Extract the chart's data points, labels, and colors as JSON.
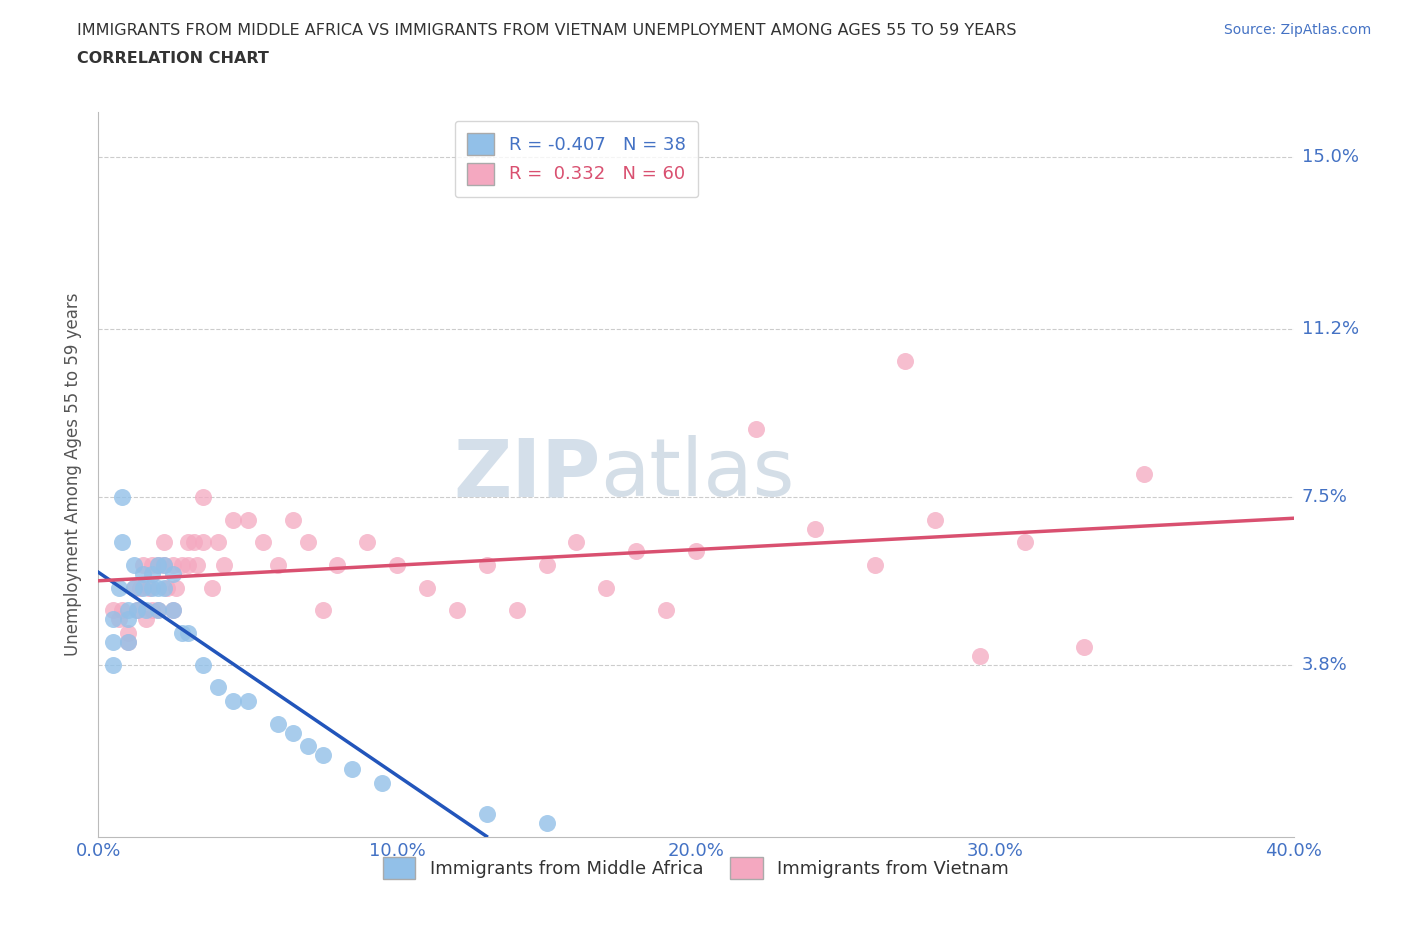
{
  "title_line1": "IMMIGRANTS FROM MIDDLE AFRICA VS IMMIGRANTS FROM VIETNAM UNEMPLOYMENT AMONG AGES 55 TO 59 YEARS",
  "title_line2": "CORRELATION CHART",
  "source_text": "Source: ZipAtlas.com",
  "ylabel": "Unemployment Among Ages 55 to 59 years",
  "xlim": [
    0.0,
    0.4
  ],
  "ylim": [
    0.0,
    0.16
  ],
  "yticks": [
    0.038,
    0.075,
    0.112,
    0.15
  ],
  "ytick_labels": [
    "3.8%",
    "7.5%",
    "11.2%",
    "15.0%"
  ],
  "xticks": [
    0.0,
    0.1,
    0.2,
    0.3,
    0.4
  ],
  "xtick_labels": [
    "0.0%",
    "10.0%",
    "20.0%",
    "30.0%",
    "40.0%"
  ],
  "color_blue": "#92C0E8",
  "color_pink": "#F4A8C0",
  "line_color_blue": "#2255BB",
  "line_color_pink": "#D95070",
  "R_blue": -0.407,
  "N_blue": 38,
  "R_pink": 0.332,
  "N_pink": 60,
  "watermark_zip": "ZIP",
  "watermark_atlas": "atlas",
  "legend_label_blue": "Immigrants from Middle Africa",
  "legend_label_pink": "Immigrants from Vietnam",
  "blue_x": [
    0.005,
    0.005,
    0.005,
    0.007,
    0.008,
    0.008,
    0.01,
    0.01,
    0.01,
    0.012,
    0.012,
    0.013,
    0.015,
    0.015,
    0.016,
    0.018,
    0.018,
    0.02,
    0.02,
    0.02,
    0.022,
    0.022,
    0.025,
    0.025,
    0.028,
    0.03,
    0.035,
    0.04,
    0.045,
    0.05,
    0.06,
    0.065,
    0.07,
    0.075,
    0.085,
    0.095,
    0.13,
    0.15
  ],
  "blue_y": [
    0.048,
    0.043,
    0.038,
    0.055,
    0.075,
    0.065,
    0.05,
    0.048,
    0.043,
    0.06,
    0.055,
    0.05,
    0.058,
    0.055,
    0.05,
    0.058,
    0.055,
    0.06,
    0.055,
    0.05,
    0.06,
    0.055,
    0.058,
    0.05,
    0.045,
    0.045,
    0.038,
    0.033,
    0.03,
    0.03,
    0.025,
    0.023,
    0.02,
    0.018,
    0.015,
    0.012,
    0.005,
    0.003
  ],
  "pink_x": [
    0.005,
    0.007,
    0.008,
    0.01,
    0.01,
    0.012,
    0.013,
    0.014,
    0.015,
    0.016,
    0.017,
    0.018,
    0.018,
    0.02,
    0.02,
    0.022,
    0.022,
    0.023,
    0.025,
    0.025,
    0.026,
    0.028,
    0.03,
    0.03,
    0.032,
    0.033,
    0.035,
    0.035,
    0.038,
    0.04,
    0.042,
    0.045,
    0.05,
    0.055,
    0.06,
    0.065,
    0.07,
    0.075,
    0.08,
    0.09,
    0.1,
    0.11,
    0.12,
    0.13,
    0.14,
    0.15,
    0.16,
    0.17,
    0.18,
    0.19,
    0.2,
    0.22,
    0.24,
    0.26,
    0.27,
    0.28,
    0.295,
    0.31,
    0.33,
    0.35
  ],
  "pink_y": [
    0.05,
    0.048,
    0.05,
    0.045,
    0.043,
    0.055,
    0.05,
    0.055,
    0.06,
    0.048,
    0.055,
    0.06,
    0.05,
    0.06,
    0.05,
    0.065,
    0.06,
    0.055,
    0.06,
    0.05,
    0.055,
    0.06,
    0.065,
    0.06,
    0.065,
    0.06,
    0.075,
    0.065,
    0.055,
    0.065,
    0.06,
    0.07,
    0.07,
    0.065,
    0.06,
    0.07,
    0.065,
    0.05,
    0.06,
    0.065,
    0.06,
    0.055,
    0.05,
    0.06,
    0.05,
    0.06,
    0.065,
    0.055,
    0.063,
    0.05,
    0.063,
    0.09,
    0.068,
    0.06,
    0.105,
    0.07,
    0.04,
    0.065,
    0.042,
    0.08
  ]
}
